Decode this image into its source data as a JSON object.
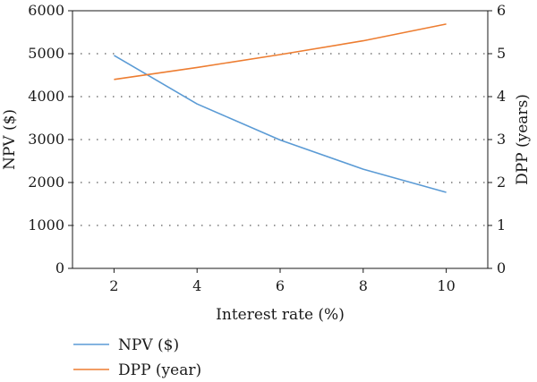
{
  "chart_data": {
    "type": "line",
    "x": [
      2,
      4,
      6,
      8,
      10
    ],
    "xlabel": "Interest rate (%)",
    "xlim": [
      1,
      11
    ],
    "xticks": [
      "2",
      "4",
      "6",
      "8",
      "10"
    ],
    "ylabel_left": "NPV ($)",
    "ylim_left": [
      0,
      6000
    ],
    "yticks_left": [
      "0",
      "1000",
      "2000",
      "3000",
      "4000",
      "5000",
      "6000"
    ],
    "ylabel_right": "DPP (years)",
    "ylim_right": [
      0,
      6
    ],
    "yticks_right": [
      "0",
      "1",
      "2",
      "3",
      "4",
      "5",
      "6"
    ],
    "grid": "horizontal-dotted",
    "legend_position": "bottom-left",
    "series": [
      {
        "name": "NPV ($)",
        "axis": "left",
        "color": "#5b9bd5",
        "values": [
          4960,
          3830,
          2990,
          2310,
          1770
        ]
      },
      {
        "name": "DPP (year)",
        "axis": "right",
        "color": "#ed7d31",
        "values": [
          4.4,
          4.68,
          4.98,
          5.3,
          5.69
        ]
      }
    ]
  }
}
